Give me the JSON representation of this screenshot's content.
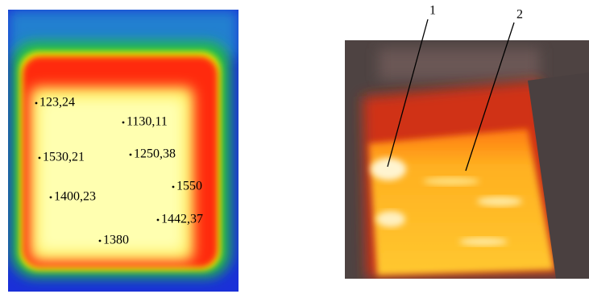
{
  "thermal_image": {
    "labels": [
      "123,24",
      "1130,11",
      "1530,21",
      "1250,38",
      "1550",
      "1400,23",
      "1442,37",
      "1380"
    ]
  },
  "photo": {
    "callouts": [
      "1",
      "2"
    ]
  }
}
